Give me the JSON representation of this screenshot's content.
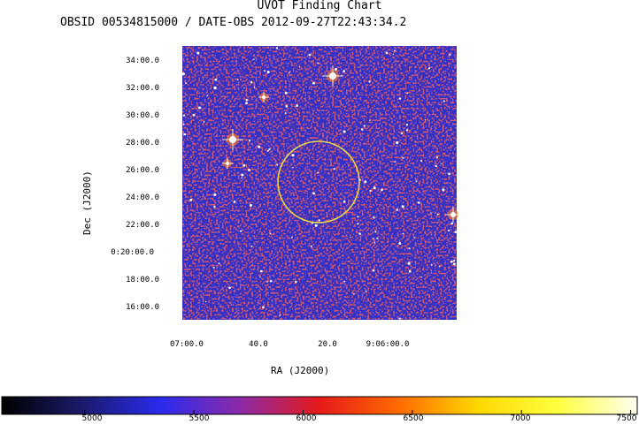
{
  "header": {
    "title": "UVOT Finding Chart",
    "subtitle": "OBSID 00534815000 / DATE-OBS 2012-09-27T22:43:34.2"
  },
  "chart_data": {
    "type": "heatmap",
    "title": "UVOT Finding Chart",
    "subtitle": "OBSID 00534815000 / DATE-OBS 2012-09-27T22:43:34.2",
    "xlabel": "RA (J2000)",
    "ylabel": "Dec (J2000)",
    "x_tick_labels": [
      "07:00.0",
      "40.0",
      "20.0",
      "9:06:00.0"
    ],
    "y_tick_labels": [
      "34:00.0",
      "32:00.0",
      "30:00.0",
      "28:00.0",
      "26:00.0",
      "24:00.0",
      "22:00.0",
      "0:20:00.0",
      "18:00.0",
      "16:00.0"
    ],
    "colorbar": {
      "min": 4620,
      "max": 7530,
      "ticks": [
        5000,
        5500,
        6000,
        6500,
        7000,
        7500
      ],
      "colors": [
        "#000000",
        "#1a1a6a",
        "#2a2aee",
        "#8c2aa8",
        "#e61a1a",
        "#ff6a00",
        "#ffd800",
        "#ffff40",
        "#fffff0"
      ]
    },
    "image_colors": {
      "background": "#3030c8",
      "noise": "#d02020",
      "stars": "#ffffff"
    },
    "source_region": {
      "shape": "circle",
      "color": "#e6d84a",
      "ra": "9:06:20.0",
      "dec": "0:25:00.0"
    }
  }
}
